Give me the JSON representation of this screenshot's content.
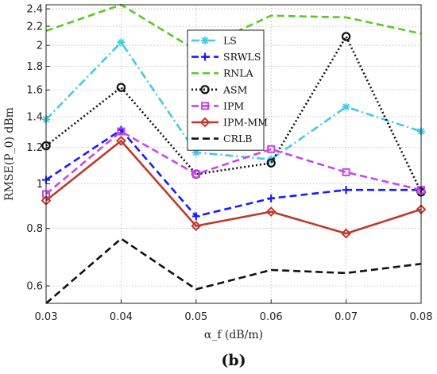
{
  "panel_label": "(b)",
  "chart_data": {
    "type": "line",
    "title": "",
    "xlabel": "α_f (dB/m)",
    "ylabel": "RMSE(P_0) dBm",
    "y_scale": "log",
    "x": [
      0.03,
      0.04,
      0.05,
      0.06,
      0.07,
      0.08
    ],
    "x_ticks": [
      "0.03",
      "0.04",
      "0.05",
      "0.06",
      "0.07",
      "0.08"
    ],
    "xlim": [
      0.03,
      0.08
    ],
    "ylim": [
      0.55,
      2.45
    ],
    "y_ticks": [
      "0.6",
      "0.8",
      "1",
      "1.2",
      "1.4",
      "1.6",
      "1.8",
      "2",
      "2.2",
      "2.4"
    ],
    "grid": true,
    "legend_position": "top-right",
    "series": [
      {
        "name": "LS",
        "color": "#44c8e8",
        "line_style": "dashdot",
        "marker": "asterisk",
        "values": [
          1.38,
          2.03,
          1.17,
          1.13,
          1.47,
          1.3
        ]
      },
      {
        "name": "SRWLS",
        "color": "#1a1aff",
        "line_style": "dashed",
        "marker": "plus",
        "values": [
          1.02,
          1.31,
          0.85,
          0.93,
          0.97,
          0.97
        ]
      },
      {
        "name": "RNLA",
        "color": "#55cc22",
        "line_style": "dashed",
        "marker": "none",
        "values": [
          2.15,
          2.45,
          1.95,
          2.32,
          2.3,
          2.12
        ]
      },
      {
        "name": "ASM",
        "color": "#111111",
        "line_style": "dotted",
        "marker": "circle",
        "values": [
          1.21,
          1.62,
          1.05,
          1.11,
          2.09,
          0.96
        ]
      },
      {
        "name": "IPM",
        "color": "#cc44ee",
        "line_style": "dashed",
        "marker": "square",
        "values": [
          0.95,
          1.3,
          1.05,
          1.19,
          1.06,
          0.97
        ]
      },
      {
        "name": "IPM-MM",
        "color": "#c0392b",
        "line_style": "solid",
        "marker": "diamond",
        "values": [
          0.92,
          1.24,
          0.81,
          0.87,
          0.78,
          0.88
        ]
      },
      {
        "name": "CRLB",
        "color": "#111111",
        "line_style": "dashed",
        "marker": "none",
        "values": [
          0.55,
          0.76,
          0.59,
          0.65,
          0.64,
          0.67
        ]
      }
    ]
  }
}
